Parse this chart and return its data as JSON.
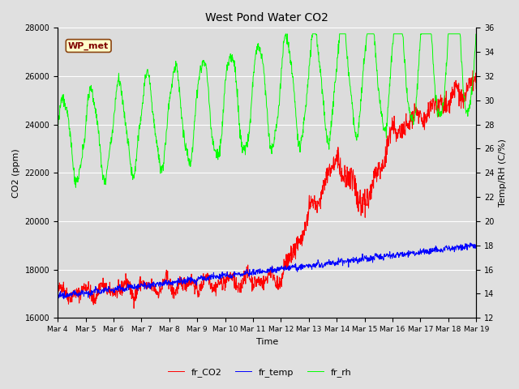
{
  "title": "West Pond Water CO2",
  "xlabel": "Time",
  "ylabel_left": "CO2 (ppm)",
  "ylabel_right": "Temp/RH (C/%)",
  "annotation": "WP_met",
  "left_ylim": [
    16000,
    28000
  ],
  "right_ylim": [
    12,
    36
  ],
  "left_yticks": [
    16000,
    18000,
    20000,
    22000,
    24000,
    26000,
    28000
  ],
  "right_yticks": [
    12,
    14,
    16,
    18,
    20,
    22,
    24,
    26,
    28,
    30,
    32,
    34,
    36
  ],
  "xtick_labels": [
    "Mar 4",
    "Mar 5",
    "Mar 6",
    "Mar 7",
    "Mar 8",
    "Mar 9",
    "Mar 10",
    "Mar 11",
    "Mar 12",
    "Mar 13",
    "Mar 14",
    "Mar 15",
    "Mar 16",
    "Mar 17",
    "Mar 18",
    "Mar 19"
  ],
  "legend_labels": [
    "fr_CO2",
    "fr_temp",
    "fr_rh"
  ],
  "line_colors": [
    "red",
    "blue",
    "lime"
  ],
  "figure_bg": "#e0e0e0",
  "axes_bg": "#dcdcdc",
  "n_days": 15,
  "points_per_day": 96,
  "seed": 42
}
